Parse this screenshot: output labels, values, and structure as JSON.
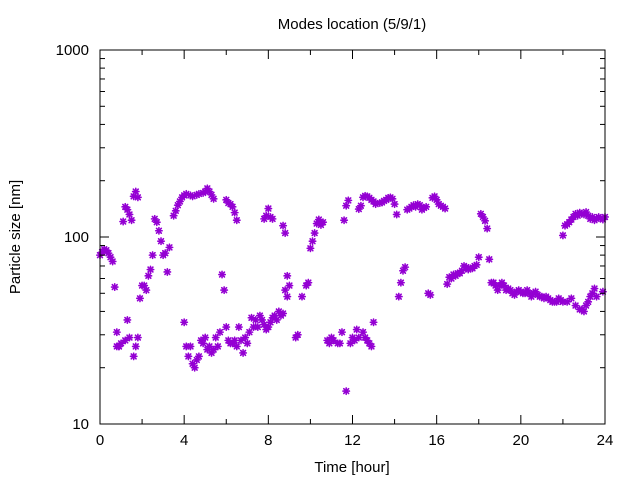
{
  "colors": {
    "points": "#9400d3",
    "axis": "#000000",
    "background": "#ffffff"
  },
  "chart_data": {
    "type": "scatter",
    "title": "Modes location (5/9/1)",
    "xlabel": "Time [hour]",
    "ylabel": "Particle size [nm]",
    "xlim": [
      0,
      24
    ],
    "ylim": [
      10,
      1000
    ],
    "yscale": "log",
    "grid": false,
    "legend": "none",
    "xticks": [
      0,
      4,
      8,
      12,
      16,
      20,
      24
    ],
    "yticks": [
      10,
      100,
      1000
    ],
    "marker": "asterisk",
    "series": [
      {
        "points": [
          [
            0.0,
            80
          ],
          [
            0.1,
            83
          ],
          [
            0.2,
            86
          ],
          [
            0.3,
            85
          ],
          [
            0.4,
            82
          ],
          [
            0.5,
            78
          ],
          [
            0.6,
            74
          ],
          [
            0.7,
            54
          ],
          [
            0.8,
            31
          ],
          [
            0.9,
            26
          ],
          [
            1.0,
            27
          ],
          [
            1.1,
            121
          ],
          [
            1.2,
            145
          ],
          [
            1.3,
            140
          ],
          [
            1.4,
            132
          ],
          [
            1.5,
            123
          ],
          [
            1.6,
            165
          ],
          [
            1.7,
            175
          ],
          [
            1.8,
            163
          ],
          [
            1.9,
            47
          ],
          [
            2.0,
            55
          ],
          [
            2.1,
            55
          ],
          [
            2.2,
            52
          ],
          [
            2.3,
            62
          ],
          [
            2.4,
            67
          ],
          [
            2.5,
            80
          ],
          [
            2.6,
            125
          ],
          [
            2.7,
            120
          ],
          [
            2.8,
            108
          ],
          [
            2.9,
            95
          ],
          [
            3.0,
            80
          ],
          [
            3.1,
            82
          ],
          [
            3.2,
            65
          ],
          [
            3.3,
            88
          ],
          [
            3.5,
            130
          ],
          [
            3.6,
            138
          ],
          [
            3.7,
            148
          ],
          [
            3.8,
            155
          ],
          [
            3.9,
            163
          ],
          [
            4.0,
            167
          ],
          [
            4.1,
            170
          ],
          [
            4.3,
            167
          ],
          [
            4.4,
            165
          ],
          [
            4.6,
            168
          ],
          [
            4.7,
            170
          ],
          [
            4.9,
            172
          ],
          [
            5.0,
            175
          ],
          [
            5.1,
            182
          ],
          [
            5.2,
            175
          ],
          [
            5.3,
            168
          ],
          [
            5.4,
            160
          ],
          [
            5.8,
            63
          ],
          [
            5.9,
            52
          ],
          [
            6.0,
            158
          ],
          [
            6.1,
            152
          ],
          [
            6.2,
            150
          ],
          [
            6.3,
            145
          ],
          [
            6.4,
            135
          ],
          [
            6.5,
            123
          ],
          [
            7.8,
            125
          ],
          [
            7.9,
            130
          ],
          [
            8.0,
            142
          ],
          [
            8.1,
            128
          ],
          [
            8.2,
            125
          ],
          [
            8.7,
            115
          ],
          [
            8.8,
            105
          ],
          [
            8.9,
            62
          ],
          [
            9.0,
            55
          ],
          [
            9.3,
            29
          ],
          [
            9.4,
            30
          ],
          [
            9.6,
            48
          ],
          [
            9.8,
            55
          ],
          [
            9.9,
            57
          ],
          [
            10.0,
            87
          ],
          [
            10.1,
            95
          ],
          [
            10.2,
            105
          ],
          [
            10.3,
            118
          ],
          [
            10.4,
            124
          ],
          [
            10.5,
            116
          ],
          [
            10.6,
            120
          ],
          [
            10.8,
            28
          ],
          [
            10.9,
            27
          ],
          [
            11.0,
            29
          ],
          [
            11.1,
            28
          ],
          [
            11.3,
            27
          ],
          [
            11.4,
            27
          ],
          [
            11.5,
            31
          ],
          [
            11.6,
            123
          ],
          [
            11.7,
            147
          ],
          [
            11.8,
            157
          ],
          [
            11.9,
            27
          ],
          [
            12.0,
            29
          ],
          [
            12.1,
            28
          ],
          [
            12.2,
            32
          ],
          [
            12.3,
            141
          ],
          [
            12.4,
            147
          ],
          [
            12.5,
            163
          ],
          [
            12.6,
            166
          ],
          [
            12.7,
            165
          ],
          [
            12.8,
            162
          ],
          [
            12.9,
            158
          ],
          [
            13.0,
            155
          ],
          [
            13.1,
            150
          ],
          [
            13.3,
            152
          ],
          [
            13.4,
            153
          ],
          [
            13.5,
            156
          ],
          [
            13.6,
            158
          ],
          [
            13.7,
            162
          ],
          [
            13.8,
            163
          ],
          [
            13.9,
            160
          ],
          [
            14.0,
            150
          ],
          [
            14.1,
            132
          ],
          [
            14.2,
            48
          ],
          [
            14.3,
            57
          ],
          [
            14.4,
            66
          ],
          [
            14.5,
            69
          ],
          [
            14.6,
            140
          ],
          [
            14.7,
            142
          ],
          [
            14.8,
            145
          ],
          [
            14.9,
            148
          ],
          [
            15.0,
            145
          ],
          [
            15.1,
            150
          ],
          [
            15.2,
            148
          ],
          [
            15.3,
            140
          ],
          [
            15.4,
            143
          ],
          [
            15.5,
            145
          ],
          [
            15.6,
            50
          ],
          [
            15.7,
            49
          ],
          [
            15.8,
            162
          ],
          [
            15.9,
            165
          ],
          [
            16.0,
            158
          ],
          [
            16.1,
            150
          ],
          [
            16.2,
            147
          ],
          [
            16.3,
            145
          ],
          [
            16.4,
            142
          ],
          [
            16.5,
            56
          ],
          [
            16.6,
            61
          ],
          [
            16.7,
            60
          ],
          [
            16.8,
            63
          ],
          [
            16.9,
            62
          ],
          [
            17.0,
            64
          ],
          [
            17.1,
            64
          ],
          [
            17.2,
            66
          ],
          [
            17.3,
            70
          ],
          [
            17.4,
            69
          ],
          [
            17.5,
            67
          ],
          [
            17.6,
            68
          ],
          [
            17.7,
            68
          ],
          [
            17.8,
            70
          ],
          [
            17.9,
            71
          ],
          [
            18.0,
            78
          ],
          [
            18.1,
            133
          ],
          [
            18.2,
            128
          ],
          [
            18.3,
            122
          ],
          [
            18.4,
            111
          ],
          [
            18.5,
            76
          ],
          [
            18.6,
            57
          ],
          [
            18.7,
            57
          ],
          [
            18.8,
            55
          ],
          [
            18.9,
            52
          ],
          [
            19.0,
            55
          ],
          [
            19.1,
            57
          ],
          [
            19.2,
            55
          ],
          [
            19.3,
            52
          ],
          [
            19.4,
            53
          ],
          [
            19.5,
            52
          ],
          [
            19.6,
            50
          ],
          [
            19.7,
            49
          ],
          [
            19.8,
            51
          ],
          [
            19.9,
            52
          ],
          [
            20.0,
            51
          ],
          [
            20.1,
            50
          ],
          [
            20.2,
            50
          ],
          [
            20.3,
            52
          ],
          [
            20.4,
            50
          ],
          [
            20.5,
            48
          ],
          [
            20.6,
            50
          ],
          [
            20.7,
            51
          ],
          [
            20.8,
            49
          ],
          [
            20.9,
            48
          ],
          [
            21.0,
            48
          ],
          [
            21.1,
            47
          ],
          [
            21.2,
            48
          ],
          [
            21.3,
            47
          ],
          [
            21.4,
            46
          ],
          [
            21.5,
            45
          ],
          [
            21.6,
            45
          ],
          [
            21.7,
            45
          ],
          [
            21.8,
            47
          ],
          [
            21.9,
            46
          ],
          [
            22.0,
            102
          ],
          [
            22.1,
            115
          ],
          [
            22.2,
            117
          ],
          [
            22.3,
            120
          ],
          [
            22.4,
            124
          ],
          [
            22.5,
            128
          ],
          [
            22.6,
            133
          ],
          [
            22.7,
            130
          ],
          [
            22.8,
            135
          ],
          [
            22.9,
            133
          ],
          [
            23.0,
            132
          ],
          [
            23.1,
            136
          ],
          [
            23.2,
            130
          ],
          [
            23.3,
            125
          ],
          [
            23.4,
            128
          ],
          [
            23.5,
            123
          ],
          [
            23.6,
            125
          ],
          [
            23.7,
            128
          ],
          [
            23.8,
            126
          ],
          [
            23.9,
            124
          ],
          [
            24.0,
            128
          ],
          [
            0.8,
            26
          ],
          [
            0.9,
            26
          ],
          [
            1.2,
            28
          ],
          [
            1.3,
            36
          ],
          [
            1.4,
            29
          ],
          [
            1.6,
            23
          ],
          [
            1.7,
            26
          ],
          [
            1.8,
            29
          ],
          [
            4.0,
            35
          ],
          [
            4.1,
            26
          ],
          [
            4.2,
            23
          ],
          [
            4.3,
            26
          ],
          [
            4.4,
            21
          ],
          [
            4.5,
            20
          ],
          [
            4.6,
            22
          ],
          [
            4.7,
            23
          ],
          [
            4.8,
            28
          ],
          [
            4.9,
            27
          ],
          [
            5.0,
            29
          ],
          [
            5.1,
            25
          ],
          [
            5.2,
            26
          ],
          [
            5.3,
            24
          ],
          [
            5.4,
            25
          ],
          [
            5.5,
            29
          ],
          [
            5.6,
            26
          ],
          [
            5.7,
            31
          ],
          [
            6.0,
            33
          ],
          [
            6.1,
            28
          ],
          [
            6.2,
            27
          ],
          [
            6.3,
            27
          ],
          [
            6.4,
            28
          ],
          [
            6.5,
            26
          ],
          [
            6.6,
            33
          ],
          [
            6.7,
            28
          ],
          [
            6.8,
            24
          ],
          [
            6.9,
            29
          ],
          [
            7.0,
            27
          ],
          [
            7.1,
            31
          ],
          [
            7.2,
            37
          ],
          [
            7.3,
            33
          ],
          [
            7.4,
            36
          ],
          [
            7.5,
            33
          ],
          [
            7.6,
            38
          ],
          [
            7.7,
            36
          ],
          [
            7.8,
            34
          ],
          [
            7.9,
            32
          ],
          [
            8.0,
            33
          ],
          [
            8.1,
            35
          ],
          [
            8.2,
            37
          ],
          [
            8.3,
            38
          ],
          [
            8.4,
            36
          ],
          [
            8.5,
            40
          ],
          [
            8.6,
            38
          ],
          [
            8.7,
            39
          ],
          [
            8.8,
            52
          ],
          [
            8.9,
            48
          ],
          [
            12.3,
            29
          ],
          [
            12.5,
            31
          ],
          [
            12.6,
            29
          ],
          [
            12.7,
            28
          ],
          [
            12.8,
            27
          ],
          [
            12.9,
            26
          ],
          [
            13.0,
            35
          ],
          [
            11.7,
            15
          ],
          [
            22.0,
            45
          ],
          [
            22.2,
            45
          ],
          [
            22.4,
            47
          ],
          [
            22.6,
            43
          ],
          [
            22.8,
            41
          ],
          [
            22.9,
            41
          ],
          [
            23.0,
            40
          ],
          [
            23.1,
            43
          ],
          [
            23.2,
            45
          ],
          [
            23.3,
            48
          ],
          [
            23.4,
            50
          ],
          [
            23.5,
            53
          ],
          [
            23.6,
            48
          ],
          [
            23.9,
            51
          ]
        ]
      }
    ]
  }
}
